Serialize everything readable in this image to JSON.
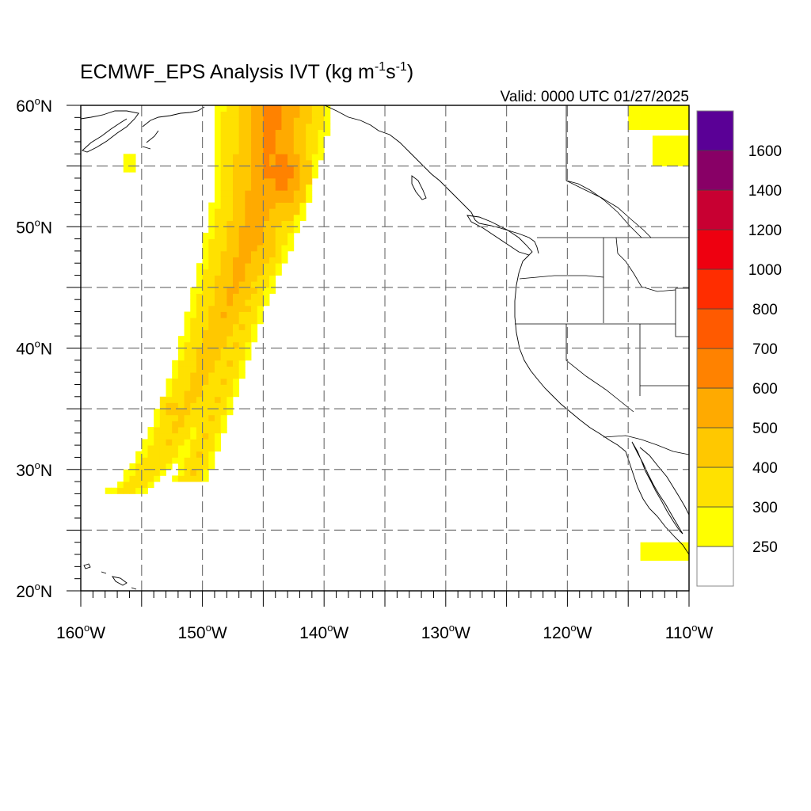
{
  "title": {
    "main": "ECMWF_EPS Analysis IVT (kg m",
    "sup1": "-1",
    "mid": "s",
    "sup2": "-1",
    "close": ")"
  },
  "valid_time": "Valid: 0000 UTC 01/27/2025",
  "x_axis": {
    "range": [
      -160,
      -110
    ],
    "ticks": [
      {
        "value": -160,
        "label": "160",
        "deg": "o",
        "hemi": "W"
      },
      {
        "value": -150,
        "label": "150",
        "deg": "o",
        "hemi": "W"
      },
      {
        "value": -140,
        "label": "140",
        "deg": "o",
        "hemi": "W"
      },
      {
        "value": -130,
        "label": "130",
        "deg": "o",
        "hemi": "W"
      },
      {
        "value": -120,
        "label": "120",
        "deg": "o",
        "hemi": "W"
      },
      {
        "value": -110,
        "label": "110",
        "deg": "o",
        "hemi": "W"
      }
    ]
  },
  "y_axis": {
    "range": [
      20,
      60
    ],
    "ticks": [
      {
        "value": 20,
        "label": "20",
        "deg": "o",
        "hemi": "N"
      },
      {
        "value": 30,
        "label": "30",
        "deg": "o",
        "hemi": "N"
      },
      {
        "value": 40,
        "label": "40",
        "deg": "o",
        "hemi": "N"
      },
      {
        "value": 50,
        "label": "50",
        "deg": "o",
        "hemi": "N"
      },
      {
        "value": 60,
        "label": "60",
        "deg": "o",
        "hemi": "N"
      }
    ]
  },
  "gridlines": "dashed every 5 degrees",
  "colorbar": {
    "bins": [
      {
        "color": "#ffffff"
      },
      {
        "color": "#ffff00"
      },
      {
        "color": "#ffe100"
      },
      {
        "color": "#ffc800"
      },
      {
        "color": "#ffaa00"
      },
      {
        "color": "#ff8200"
      },
      {
        "color": "#ff5a00"
      },
      {
        "color": "#ff2d00"
      },
      {
        "color": "#ee0010"
      },
      {
        "color": "#c80032"
      },
      {
        "color": "#880066"
      },
      {
        "color": "#5a0096"
      }
    ],
    "labels": [
      "250",
      "300",
      "400",
      "500",
      "600",
      "700",
      "800",
      "1000",
      "1200",
      "1400",
      "1600"
    ]
  },
  "chart_data": {
    "type": "heatmap",
    "variable": "IVT (kg m-1 s-1)",
    "region": {
      "lon": [
        -160,
        -110
      ],
      "lat": [
        20,
        60
      ]
    },
    "levels": [
      250,
      300,
      400,
      500,
      600,
      700,
      800,
      1000,
      1200,
      1400,
      1600
    ],
    "plumes": [
      {
        "peak_class": "600-700",
        "center_lon": -143.5,
        "center_lat": 54.5,
        "lon_extent": [
          -146,
          -142
        ],
        "lat_extent": [
          50,
          58
        ]
      },
      {
        "peak_class": "400-500",
        "center_lon": -145.5,
        "center_lat": 49,
        "lon_extent": [
          -147,
          -142
        ],
        "lat_extent": [
          46,
          52
        ]
      },
      {
        "peak_class": "250-400",
        "lon_extent": [
          -158,
          -141
        ],
        "lat_extent": [
          28,
          60
        ]
      },
      {
        "peak_class": "400-500",
        "center_lon": -152.5,
        "center_lat": 35,
        "lon_extent": [
          -153,
          -152
        ],
        "lat_extent": [
          34.5,
          35.5
        ]
      },
      {
        "peak_class": "250-300",
        "lon_extent": [
          -156.5,
          -156
        ],
        "lat_extent": [
          54.5,
          56
        ]
      },
      {
        "peak_class": "250-300",
        "lon_extent": [
          -115,
          -110
        ],
        "lat_extent": [
          55,
          60
        ]
      },
      {
        "peak_class": "250-300",
        "lon_extent": [
          -114,
          -110
        ],
        "lat_extent": [
          22.5,
          24
        ]
      }
    ]
  }
}
